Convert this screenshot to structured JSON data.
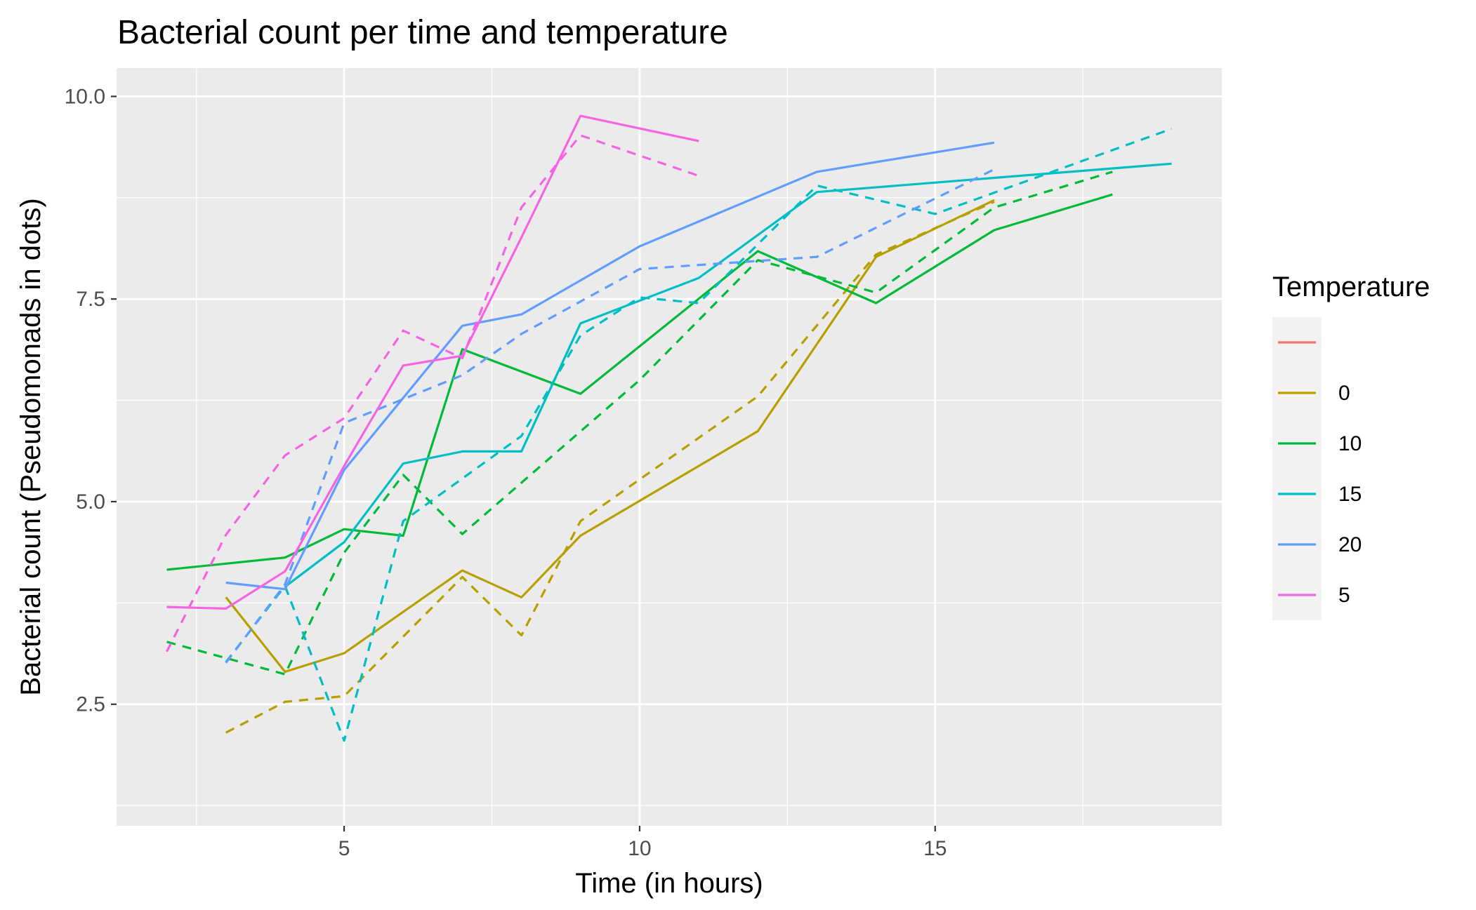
{
  "chart_data": {
    "type": "line",
    "title": "Bacterial count per time and temperature",
    "xlabel": "Time (in hours)",
    "ylabel": "Bacterial count (Pseudomonads in dots)",
    "xlim": [
      1.15,
      19.85
    ],
    "ylim": [
      1.0,
      10.35
    ],
    "x_ticks": [
      5,
      10,
      15
    ],
    "x_tick_labels": [
      "5",
      "10",
      "15"
    ],
    "x_minor": [
      2.5,
      7.5,
      12.5,
      17.5
    ],
    "y_ticks": [
      2.5,
      5.0,
      7.5,
      10.0
    ],
    "y_tick_labels": [
      "2.5",
      "5.0",
      "7.5",
      "10.0"
    ],
    "y_minor": [
      1.25,
      3.75,
      6.25,
      8.75
    ],
    "grid": true,
    "legend_position": "right",
    "legend": {
      "title": "Temperature",
      "entries": [
        {
          "label": "",
          "color": "#F8766D"
        },
        {
          "label": "0",
          "color": "#B79F00"
        },
        {
          "label": "10",
          "color": "#00BA38"
        },
        {
          "label": "15",
          "color": "#00BFC4"
        },
        {
          "label": "20",
          "color": "#619CFF"
        },
        {
          "label": "5",
          "color": "#F564E3"
        }
      ]
    },
    "series": [
      {
        "name": "0",
        "color": "#B79F00",
        "dashed": false,
        "x": [
          3,
          4,
          5,
          7,
          8,
          9,
          12,
          14,
          16
        ],
        "y": [
          3.82,
          2.9,
          3.13,
          4.15,
          3.82,
          4.58,
          5.87,
          8.02,
          8.72
        ]
      },
      {
        "name": "0",
        "color": "#B79F00",
        "dashed": true,
        "x": [
          3,
          4,
          5,
          7,
          8,
          9,
          12,
          14,
          16
        ],
        "y": [
          2.15,
          2.53,
          2.6,
          4.07,
          3.35,
          4.76,
          6.3,
          8.05,
          8.7
        ]
      },
      {
        "name": "10",
        "color": "#00BA38",
        "dashed": false,
        "x": [
          2,
          4,
          5,
          6,
          7,
          9,
          12,
          14,
          16,
          18
        ],
        "y": [
          4.16,
          4.31,
          4.66,
          4.58,
          6.88,
          6.33,
          8.09,
          7.45,
          8.35,
          8.79
        ]
      },
      {
        "name": "10",
        "color": "#00BA38",
        "dashed": true,
        "x": [
          2,
          4,
          5,
          6,
          7,
          10,
          12,
          14,
          16,
          18
        ],
        "y": [
          3.27,
          2.87,
          4.37,
          5.33,
          4.6,
          6.5,
          7.98,
          7.58,
          8.63,
          9.07
        ]
      },
      {
        "name": "15",
        "color": "#00BFC4",
        "dashed": false,
        "x": [
          4,
          5,
          6,
          7,
          8,
          9,
          11,
          13,
          19
        ],
        "y": [
          3.95,
          4.5,
          5.47,
          5.62,
          5.62,
          7.2,
          7.76,
          8.82,
          9.17
        ]
      },
      {
        "name": "15",
        "color": "#00BFC4",
        "dashed": true,
        "x": [
          3,
          4,
          5,
          6,
          8,
          9,
          10,
          11,
          13,
          15,
          19
        ],
        "y": [
          3.02,
          3.96,
          2.05,
          4.76,
          5.81,
          7.05,
          7.52,
          7.45,
          8.9,
          8.55,
          9.6
        ]
      },
      {
        "name": "20",
        "color": "#619CFF",
        "dashed": false,
        "x": [
          3,
          4,
          5,
          7,
          8,
          10,
          13,
          16
        ],
        "y": [
          4.0,
          3.92,
          5.39,
          7.17,
          7.31,
          8.15,
          9.07,
          9.43
        ]
      },
      {
        "name": "20",
        "color": "#619CFF",
        "dashed": true,
        "x": [
          3,
          4,
          5,
          7,
          8,
          10,
          13,
          16
        ],
        "y": [
          3.01,
          3.98,
          5.97,
          6.56,
          7.07,
          7.87,
          8.02,
          9.1
        ]
      },
      {
        "name": "5",
        "color": "#F564E3",
        "dashed": false,
        "x": [
          2,
          3,
          4,
          5,
          6,
          7,
          8,
          9,
          11
        ],
        "y": [
          3.7,
          3.68,
          4.14,
          5.44,
          6.68,
          6.8,
          8.26,
          9.76,
          9.45
        ]
      },
      {
        "name": "5",
        "color": "#F564E3",
        "dashed": true,
        "x": [
          2,
          3,
          4,
          5,
          6,
          7,
          8,
          9,
          11
        ],
        "y": [
          3.15,
          4.59,
          5.57,
          6.03,
          7.11,
          6.77,
          8.63,
          9.52,
          9.02
        ]
      }
    ]
  }
}
